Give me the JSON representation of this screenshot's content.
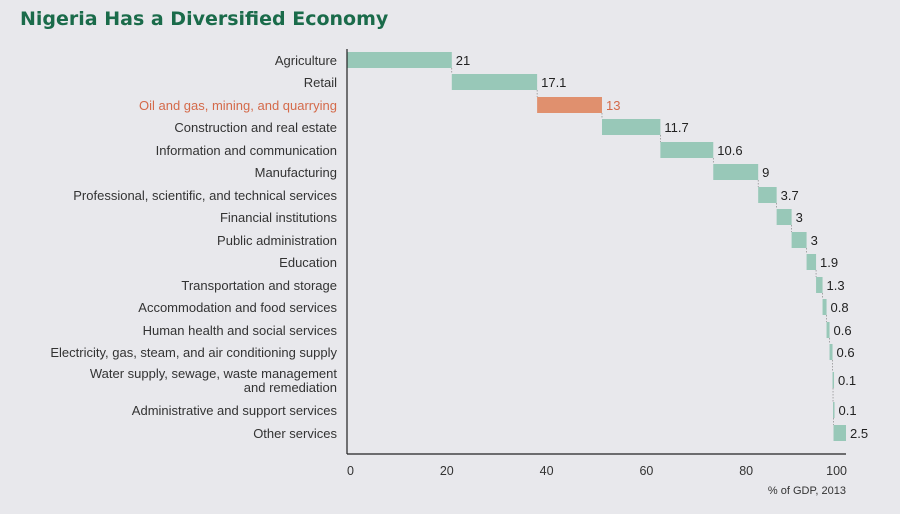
{
  "chart_data": {
    "type": "bar",
    "subtype": "waterfall-horizontal",
    "title": "Nigeria Has a Diversified Economy",
    "xlabel": "% of GDP, 2013",
    "ylabel": "",
    "xlim": [
      0,
      100
    ],
    "xticks": [
      "0",
      "20",
      "40",
      "60",
      "80",
      "100"
    ],
    "categories": [
      [
        "Agriculture"
      ],
      [
        "Retail"
      ],
      [
        "Oil and gas, mining, and quarrying"
      ],
      [
        "Construction and real estate"
      ],
      [
        "Information and communication"
      ],
      [
        "Manufacturing"
      ],
      [
        "Professional, scientific, and technical services"
      ],
      [
        "Financial institutions"
      ],
      [
        "Public administration"
      ],
      [
        "Education"
      ],
      [
        "Transportation and storage"
      ],
      [
        "Accommodation and food services"
      ],
      [
        "Human health and social services"
      ],
      [
        "Electricity, gas, steam, and air conditioning supply"
      ],
      [
        "Water supply, sewage, waste management",
        "and remediation"
      ],
      [
        "Administrative and support services"
      ],
      [
        "Other services"
      ]
    ],
    "values": [
      21,
      17.1,
      13,
      11.7,
      10.6,
      9,
      3.7,
      3,
      3,
      1.9,
      1.3,
      0.8,
      0.6,
      0.6,
      0.1,
      0.1,
      2.5
    ],
    "value_labels": [
      "21",
      "17.1",
      "13",
      "11.7",
      "10.6",
      "9",
      "3.7",
      "3",
      "3",
      "1.9",
      "1.3",
      "0.8",
      "0.6",
      "0.6",
      "0.1",
      "0.1",
      "2.5"
    ],
    "highlight_index": 2,
    "colors": {
      "bar": "#98c8b8",
      "highlight": "#e0906e",
      "highlight_text": "#d46a4a",
      "title": "#1a6b4a",
      "axis": "#222222"
    },
    "grid": false,
    "legend": "none"
  }
}
